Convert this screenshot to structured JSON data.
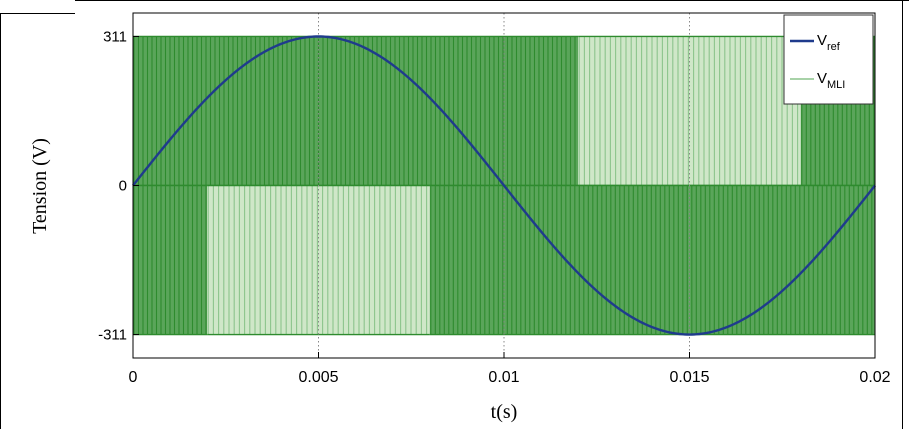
{
  "chart_data": {
    "type": "line",
    "xlabel": "t(s)",
    "ylabel": "Tension (V)",
    "xlim": [
      0,
      0.02
    ],
    "ylim": [
      -360,
      360
    ],
    "x_ticks": [
      0,
      0.005,
      0.01,
      0.015,
      0.02
    ],
    "x_tick_labels": [
      "0",
      "0.005",
      "0.01",
      "0.015",
      "0.02"
    ],
    "y_ticks": [
      -311,
      0,
      311
    ],
    "y_tick_labels": [
      "-311",
      "0",
      "311"
    ],
    "grid": "vertical-dotted",
    "legend_position": "top-right",
    "series": [
      {
        "name": "V",
        "name_subscript": "ref",
        "color": "#1f3b8c",
        "kind": "sine",
        "amplitude": 311,
        "period": 0.02,
        "points": [
          [
            0,
            0
          ],
          [
            0.001,
            96.1
          ],
          [
            0.002,
            182.8
          ],
          [
            0.003,
            251.6
          ],
          [
            0.004,
            295.8
          ],
          [
            0.005,
            311
          ],
          [
            0.006,
            295.8
          ],
          [
            0.007,
            251.6
          ],
          [
            0.008,
            182.8
          ],
          [
            0.009,
            96.1
          ],
          [
            0.01,
            0
          ],
          [
            0.011,
            -96.1
          ],
          [
            0.012,
            -182.8
          ],
          [
            0.013,
            -251.6
          ],
          [
            0.014,
            -295.8
          ],
          [
            0.015,
            -311
          ],
          [
            0.016,
            -295.8
          ],
          [
            0.017,
            -251.6
          ],
          [
            0.018,
            -182.8
          ],
          [
            0.019,
            -96.1
          ],
          [
            0.02,
            0
          ]
        ]
      },
      {
        "name": "V",
        "name_subscript": "MLI",
        "color": "#2e8b2e",
        "kind": "pwm",
        "levels": [
          0,
          311,
          -311
        ],
        "segments": [
          {
            "x": [
              0,
              0.012
            ],
            "between": [
              0,
              311
            ],
            "density": "dense"
          },
          {
            "x": [
              0.012,
              0.018
            ],
            "between": [
              0,
              311
            ],
            "density": "sparse"
          },
          {
            "x": [
              0.018,
              0.02
            ],
            "between": [
              0,
              311
            ],
            "density": "dense"
          },
          {
            "x": [
              0,
              0.002
            ],
            "between": [
              -311,
              0
            ],
            "density": "dense"
          },
          {
            "x": [
              0.002,
              0.008
            ],
            "between": [
              -311,
              0
            ],
            "density": "sparse"
          },
          {
            "x": [
              0.008,
              0.02
            ],
            "between": [
              -311,
              0
            ],
            "density": "dense"
          }
        ]
      }
    ]
  },
  "colors": {
    "dense_fill": "#5aa55a",
    "dense_line": "#2e8b2e",
    "sparse_fill": "#cfe7c8",
    "sparse_line": "#8cc48c",
    "axis": "#000000",
    "grid": "#888888"
  }
}
